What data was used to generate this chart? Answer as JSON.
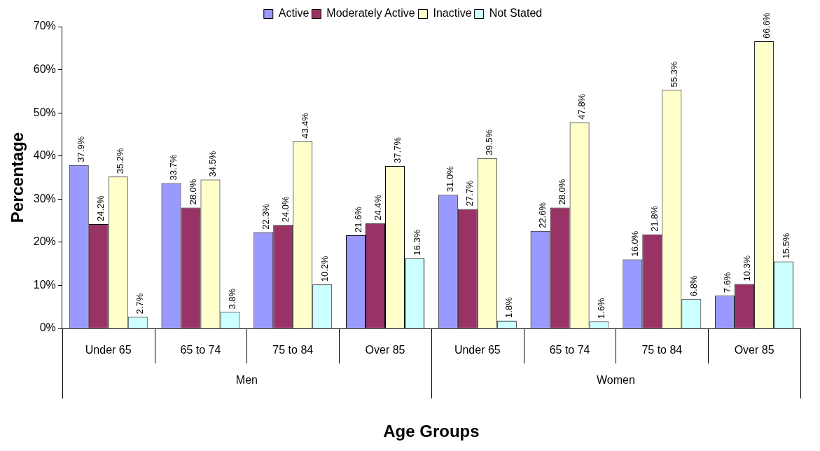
{
  "chart_data": {
    "type": "bar",
    "xlabel": "Age Groups",
    "ylabel": "Percentage",
    "categories": [
      "Under 65",
      "65 to 74",
      "75 to 84",
      "Over 85",
      "Under 65",
      "65 to 74",
      "75 to 84",
      "Over 85"
    ],
    "annotations": [
      "Men",
      "Women"
    ],
    "series": [
      {
        "name": "Active",
        "color": "#9999ff",
        "values": [
          37.9,
          33.7,
          22.3,
          21.6,
          31.0,
          22.6,
          16.0,
          7.6
        ],
        "value_labels": [
          "37.9%",
          "33.7%",
          "22.3%",
          "21.6%",
          "31.0%",
          "22.6%",
          "16.0%",
          "7.6%"
        ]
      },
      {
        "name": "Moderately Active",
        "color": "#993366",
        "values": [
          24.2,
          28.0,
          24.0,
          24.4,
          27.7,
          28.0,
          21.8,
          10.3
        ],
        "value_labels": [
          "24.2%",
          "28.0%",
          "24.0%",
          "24.4%",
          "27.7%",
          "28.0%",
          "21.8%",
          "10.3%"
        ]
      },
      {
        "name": "Inactive",
        "color": "#ffffcc",
        "values": [
          35.2,
          34.5,
          43.4,
          37.7,
          39.5,
          47.8,
          55.3,
          66.6
        ],
        "value_labels": [
          "35.2%",
          "34.5%",
          "43.4%",
          "37.7%",
          "39.5%",
          "47.8%",
          "55.3%",
          "66.6%"
        ]
      },
      {
        "name": "Not Stated",
        "color": "#ccffff",
        "values": [
          2.7,
          3.8,
          10.2,
          16.3,
          1.8,
          1.6,
          6.8,
          15.5
        ],
        "value_labels": [
          "2.7%",
          "3.8%",
          "10.2%",
          "16.3%",
          "1.8%",
          "1.6%",
          "6.8%",
          "15.5%"
        ]
      }
    ],
    "ylim": [
      0,
      70
    ],
    "yticks": [
      {
        "value": 0,
        "label": "0%"
      },
      {
        "value": 10,
        "label": "10%"
      },
      {
        "value": 20,
        "label": "20%"
      },
      {
        "value": 30,
        "label": "30%"
      },
      {
        "value": 40,
        "label": "40%"
      },
      {
        "value": 50,
        "label": "50%"
      },
      {
        "value": 60,
        "label": "60%"
      },
      {
        "value": 70,
        "label": "70%"
      }
    ],
    "grid": false,
    "legend": "top"
  }
}
